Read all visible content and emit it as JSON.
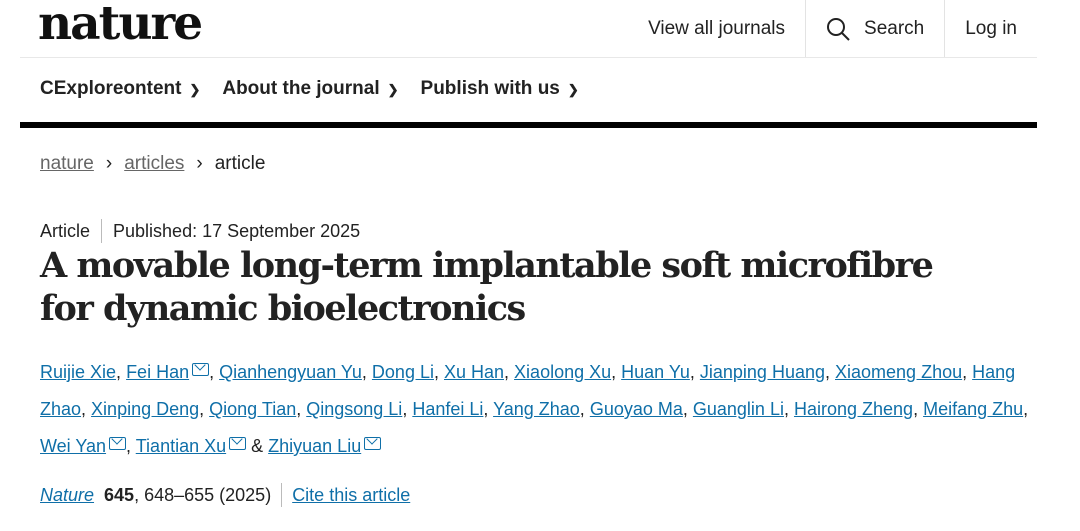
{
  "header": {
    "logo": "nature",
    "view_all": "View all journals",
    "search": "Search",
    "login": "Log in"
  },
  "menu": [
    {
      "label": "CExploreontent"
    },
    {
      "label": "About the journal"
    },
    {
      "label": "Publish with us"
    }
  ],
  "breadcrumb": [
    "nature",
    "articles",
    "article"
  ],
  "article": {
    "type": "Article",
    "published": "Published: 17 September 2025",
    "title": "A movable long-term implantable soft microfibre for dynamic bioelectronics"
  },
  "authors": [
    {
      "name": "Ruijie Xie",
      "email": false
    },
    {
      "name": "Fei Han",
      "email": true
    },
    {
      "name": "Qianhengyuan Yu",
      "email": false
    },
    {
      "name": "Dong Li",
      "email": false
    },
    {
      "name": "Xu Han",
      "email": false
    },
    {
      "name": "Xiaolong Xu",
      "email": false
    },
    {
      "name": "Huan Yu",
      "email": false
    },
    {
      "name": "Jianping Huang",
      "email": false
    },
    {
      "name": "Xiaomeng Zhou",
      "email": false
    },
    {
      "name": "Hang Zhao",
      "email": false
    },
    {
      "name": "Xinping Deng",
      "email": false
    },
    {
      "name": "Qiong Tian",
      "email": false
    },
    {
      "name": "Qingsong Li",
      "email": false
    },
    {
      "name": "Hanfei Li",
      "email": false
    },
    {
      "name": "Yang Zhao",
      "email": false
    },
    {
      "name": "Guoyao Ma",
      "email": false
    },
    {
      "name": "Guanglin Li",
      "email": false
    },
    {
      "name": "Hairong Zheng",
      "email": false
    },
    {
      "name": "Meifang Zhu",
      "email": false
    },
    {
      "name": "Wei Yan",
      "email": true
    },
    {
      "name": "Tiantian Xu",
      "email": true
    },
    {
      "name": "Zhiyuan Liu",
      "email": true
    }
  ],
  "citation": {
    "journal": "Nature",
    "volume": "645",
    "pages": ", 648–655 (2025)",
    "cite": "Cite this article"
  },
  "colors": {
    "link": "#0f6fa8",
    "text": "#222222"
  }
}
